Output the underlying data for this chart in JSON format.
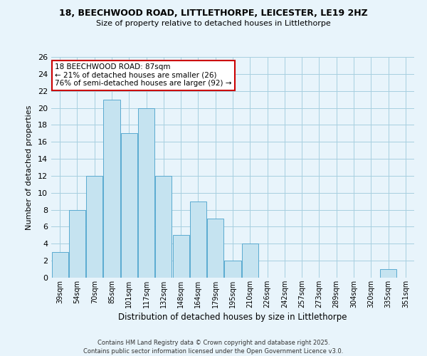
{
  "title": "18, BEECHWOOD ROAD, LITTLETHORPE, LEICESTER, LE19 2HZ",
  "subtitle": "Size of property relative to detached houses in Littlethorpe",
  "xlabel": "Distribution of detached houses by size in Littlethorpe",
  "ylabel": "Number of detached properties",
  "categories": [
    "39sqm",
    "54sqm",
    "70sqm",
    "85sqm",
    "101sqm",
    "117sqm",
    "132sqm",
    "148sqm",
    "164sqm",
    "179sqm",
    "195sqm",
    "210sqm",
    "226sqm",
    "242sqm",
    "257sqm",
    "273sqm",
    "289sqm",
    "304sqm",
    "320sqm",
    "335sqm",
    "351sqm"
  ],
  "values": [
    3,
    8,
    12,
    21,
    17,
    20,
    12,
    5,
    9,
    7,
    2,
    4,
    0,
    0,
    0,
    0,
    0,
    0,
    0,
    1,
    0
  ],
  "bar_color": "#c5e3f0",
  "bar_edge_color": "#5aaad0",
  "background_color": "#e8f4fb",
  "grid_color": "#a8cfe0",
  "ylim": [
    0,
    26
  ],
  "yticks": [
    0,
    2,
    4,
    6,
    8,
    10,
    12,
    14,
    16,
    18,
    20,
    22,
    24,
    26
  ],
  "annotation_title": "18 BEECHWOOD ROAD: 87sqm",
  "annotation_line1": "← 21% of detached houses are smaller (26)",
  "annotation_line2": "76% of semi-detached houses are larger (92) →",
  "annotation_box_edge": "#cc0000",
  "footer1": "Contains HM Land Registry data © Crown copyright and database right 2025.",
  "footer2": "Contains public sector information licensed under the Open Government Licence v3.0."
}
